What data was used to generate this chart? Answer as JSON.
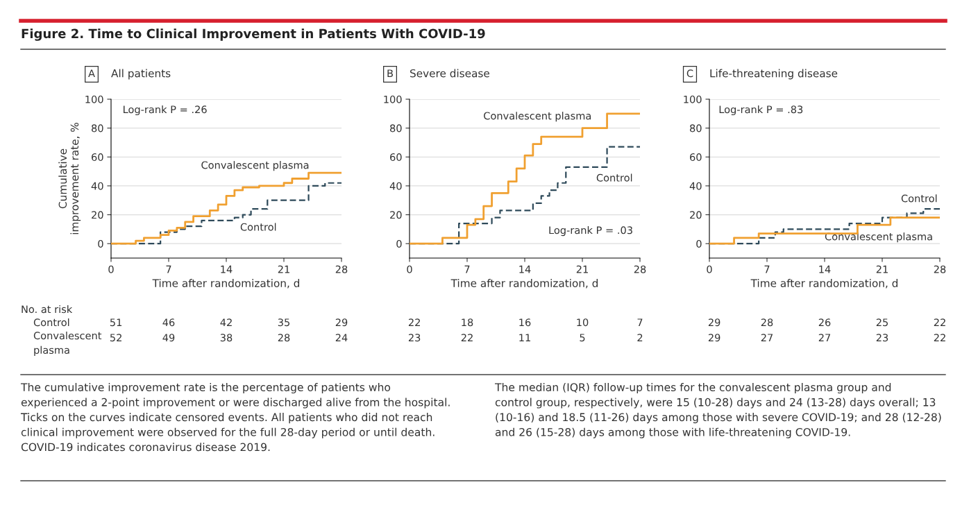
{
  "chart_data": [
    {
      "type": "step",
      "title": "A",
      "subtitle": "All patients",
      "xlabel": "Time after randomization, d",
      "ylabel": "Cumulative\nimprovement rate, %",
      "xlim": [
        0,
        28
      ],
      "ylim": [
        -10,
        100
      ],
      "xticks": [
        0,
        7,
        14,
        21,
        28
      ],
      "yticks": [
        0,
        20,
        40,
        60,
        80,
        100
      ],
      "grid": "y",
      "series": [
        {
          "name": "Convalescent plasma",
          "color": "#f0a030",
          "line_style": "solid",
          "x": [
            0,
            3,
            4,
            6,
            7,
            8,
            9,
            10,
            12,
            13,
            14,
            15,
            16,
            18,
            21,
            22,
            24,
            28
          ],
          "values": [
            0,
            2,
            4,
            6,
            9,
            11,
            15,
            19,
            23,
            27,
            33,
            37,
            39,
            40,
            42,
            45,
            49,
            49
          ]
        },
        {
          "name": "Control",
          "color": "#2e4a5a",
          "line_style": "dashed",
          "x": [
            0,
            6,
            8,
            9,
            11,
            15,
            16,
            17,
            19,
            24,
            26,
            28
          ],
          "values": [
            0,
            8,
            10,
            12,
            16,
            18,
            20,
            24,
            30,
            40,
            42,
            42
          ]
        }
      ],
      "annotations": [
        "Log-rank P = .26",
        "51",
        "46",
        "42",
        "35",
        "29",
        "52",
        "49",
        "38",
        "28",
        "24",
        "Figure 2. Time to Clinical Improvement in Patients With COVID-19",
        "No. at risk",
        "Control",
        "Convalescent\nplasma",
        "The cumulative improvement rate is the percentage of patients who\nexperienced a 2-point improvement or were discharged alive from the hospital.\nTicks on the curves indicate censored events. All patients who did not reach\nclinical improvement were observed for the full 28-day period or until death.\nCOVID-19 indicates coronavirus disease 2019.",
        "The median (IQR) follow-up times for the convalescent plasma group and\ncontrol group, respectively, were 15 (10-28) days and 24 (13-28) days overall; 13\n(10-16) and 18.5 (11-26) days among those with severe COVID-19; and 28 (12-28)\nand 26 (15-28) days among those with life-threatening COVID-19."
      ]
    },
    {
      "type": "step",
      "title": "B",
      "subtitle": "Severe disease",
      "xlabel": "Time after randomization, d",
      "xlim": [
        0,
        28
      ],
      "ylim": [
        -10,
        100
      ],
      "xticks": [
        0,
        7,
        14,
        21,
        28
      ],
      "yticks": [
        0,
        20,
        40,
        60,
        80,
        100
      ],
      "grid": "y",
      "series": [
        {
          "name": "Convalescent plasma",
          "color": "#f0a030",
          "line_style": "solid",
          "x": [
            0,
            4,
            7,
            8,
            9,
            10,
            12,
            13,
            14,
            15,
            16,
            21,
            24,
            28
          ],
          "values": [
            0,
            4,
            13,
            17,
            26,
            35,
            43,
            52,
            61,
            69,
            74,
            80,
            90,
            90
          ]
        },
        {
          "name": "Control",
          "color": "#2e4a5a",
          "line_style": "dashed",
          "x": [
            0,
            6,
            10,
            11,
            15,
            16,
            17,
            18,
            19,
            24,
            28
          ],
          "values": [
            0,
            14,
            18,
            23,
            28,
            33,
            37,
            42,
            53,
            67,
            67
          ]
        }
      ],
      "annotations": [
        "Log-rank P = .03",
        "22",
        "18",
        "16",
        "10",
        "7",
        "23",
        "22",
        "11",
        "5",
        "2"
      ]
    },
    {
      "type": "step",
      "title": "C",
      "subtitle": "Life-threatening disease",
      "xlabel": "Time after randomization, d",
      "xlim": [
        0,
        28
      ],
      "ylim": [
        -10,
        100
      ],
      "xticks": [
        0,
        7,
        14,
        21,
        28
      ],
      "yticks": [
        0,
        20,
        40,
        60,
        80,
        100
      ],
      "grid": "y",
      "series": [
        {
          "name": "Convalescent plasma",
          "color": "#f0a030",
          "line_style": "solid",
          "x": [
            0,
            3,
            6,
            18,
            22,
            28
          ],
          "values": [
            0,
            4,
            7,
            13,
            18,
            18
          ]
        },
        {
          "name": "Control",
          "color": "#2e4a5a",
          "line_style": "dashed",
          "x": [
            0,
            6,
            8,
            9,
            17,
            21,
            24,
            26,
            28
          ],
          "values": [
            0,
            4,
            8,
            10,
            14,
            18,
            21,
            24,
            24
          ]
        }
      ],
      "annotations": [
        "Log-rank P = .83",
        "29",
        "28",
        "26",
        "25",
        "22",
        "29",
        "27",
        "27",
        "23",
        "22"
      ]
    }
  ]
}
